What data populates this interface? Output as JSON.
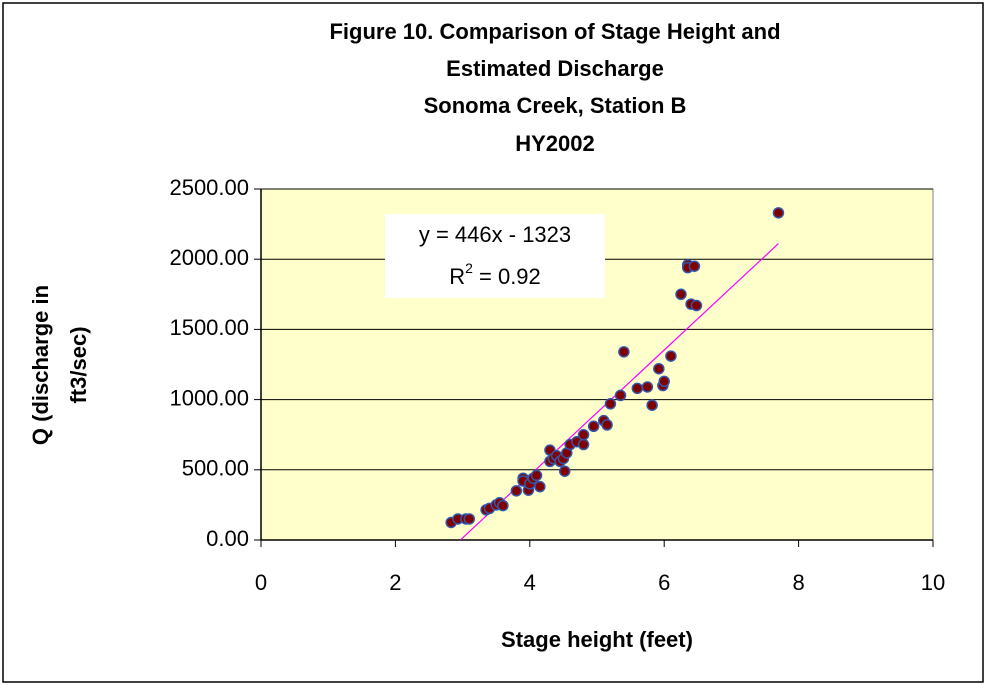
{
  "chart_data": {
    "type": "scatter",
    "title": [
      "Figure 10.  Comparison of Stage Height and",
      "Estimated Discharge",
      "Sonoma Creek, Station B",
      "HY2002"
    ],
    "x_label": "Stage height (feet)",
    "y_label": [
      "Q (discharge in",
      "ft3/sec)"
    ],
    "series": [
      {
        "color": "#800000",
        "edge_color": "#3355aa",
        "x": [
          2.83,
          2.93,
          3.05,
          3.1,
          3.35,
          3.4,
          3.5,
          3.55,
          3.6,
          3.8,
          3.9,
          3.9,
          3.98,
          4.0,
          4.05,
          4.1,
          4.15,
          4.3,
          4.3,
          4.35,
          4.4,
          4.45,
          4.5,
          4.52,
          4.55,
          4.6,
          4.7,
          4.8,
          4.8,
          4.95,
          5.1,
          5.15,
          5.2,
          5.35,
          5.4,
          5.6,
          5.75,
          5.82,
          5.92,
          5.98,
          6.0,
          6.1,
          6.25,
          6.35,
          6.35,
          6.4,
          6.45,
          6.48,
          7.7
        ],
        "values": [
          125,
          150,
          150,
          150,
          215,
          225,
          250,
          265,
          245,
          350,
          440,
          420,
          355,
          400,
          440,
          460,
          380,
          640,
          560,
          580,
          600,
          560,
          580,
          490,
          620,
          680,
          700,
          680,
          750,
          810,
          850,
          820,
          970,
          1030,
          1340,
          1080,
          1090,
          960,
          1220,
          1100,
          1130,
          1310,
          1750,
          1960,
          1940,
          1680,
          1950,
          1670,
          2330
        ]
      }
    ],
    "trendline": {
      "slope": 446,
      "intercept": -1323,
      "x_range": [
        2.97,
        7.7
      ],
      "color": "#ff00ff",
      "equation": "y = 446x - 1323",
      "r_squared": [
        "R",
        "2",
        " = 0.92"
      ]
    },
    "xlim": [
      0,
      10
    ],
    "xticks": [
      0,
      2,
      4,
      6,
      8,
      10
    ],
    "ylim": [
      0,
      2500
    ],
    "yticks": [
      {
        "value": 0,
        "label": "0.00"
      },
      {
        "value": 500,
        "label": "500.00"
      },
      {
        "value": 1000,
        "label": "1000.00"
      },
      {
        "value": 1500,
        "label": "1500.00"
      },
      {
        "value": 2000,
        "label": "2000.00"
      },
      {
        "value": 2500,
        "label": "2500.00"
      }
    ],
    "grid": true,
    "plot_background": "#ffffcc"
  }
}
